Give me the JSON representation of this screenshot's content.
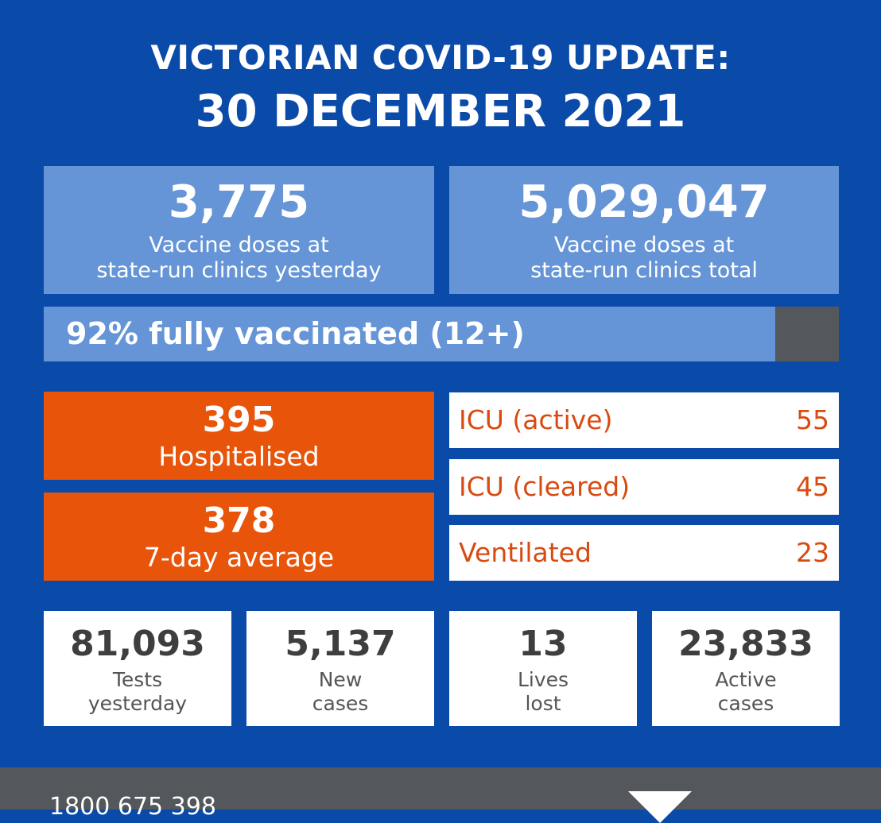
{
  "title": {
    "line1": "VICTORIAN COVID-19 UPDATE:",
    "line2": "30 DECEMBER 2021"
  },
  "vaccine": {
    "yesterday": {
      "value": "3,775",
      "label_line1": "Vaccine doses at",
      "label_line2": "state-run clinics yesterday"
    },
    "total": {
      "value": "5,029,047",
      "label_line1": "Vaccine doses at",
      "label_line2": "state-run clinics total"
    }
  },
  "fully_vaccinated": {
    "text": "92% fully vaccinated (12+)",
    "percent": 92
  },
  "hospital": {
    "hospitalised": {
      "value": "395",
      "label": "Hospitalised"
    },
    "seven_day": {
      "value": "378",
      "label": "7-day average"
    }
  },
  "icu": [
    {
      "label": "ICU (active)",
      "value": "55"
    },
    {
      "label": "ICU (cleared)",
      "value": "45"
    },
    {
      "label": "Ventilated",
      "value": "23"
    }
  ],
  "stats": [
    {
      "value": "81,093",
      "label_line1": "Tests",
      "label_line2": "yesterday"
    },
    {
      "value": "5,137",
      "label_line1": "New",
      "label_line2": "cases"
    },
    {
      "value": "13",
      "label_line1": "Lives",
      "label_line2": "lost"
    },
    {
      "value": "23,833",
      "label_line1": "Active",
      "label_line2": "cases"
    }
  ],
  "footer": {
    "phone": "1800 675 398",
    "logo_icon": "victoria-state-government-triangle-icon"
  },
  "colors": {
    "background": "#0a4aa8",
    "vaccine_box": "#6595d6",
    "hospital_box": "#e8540a",
    "icu_text": "#d84a10",
    "footer": "#54585d"
  }
}
